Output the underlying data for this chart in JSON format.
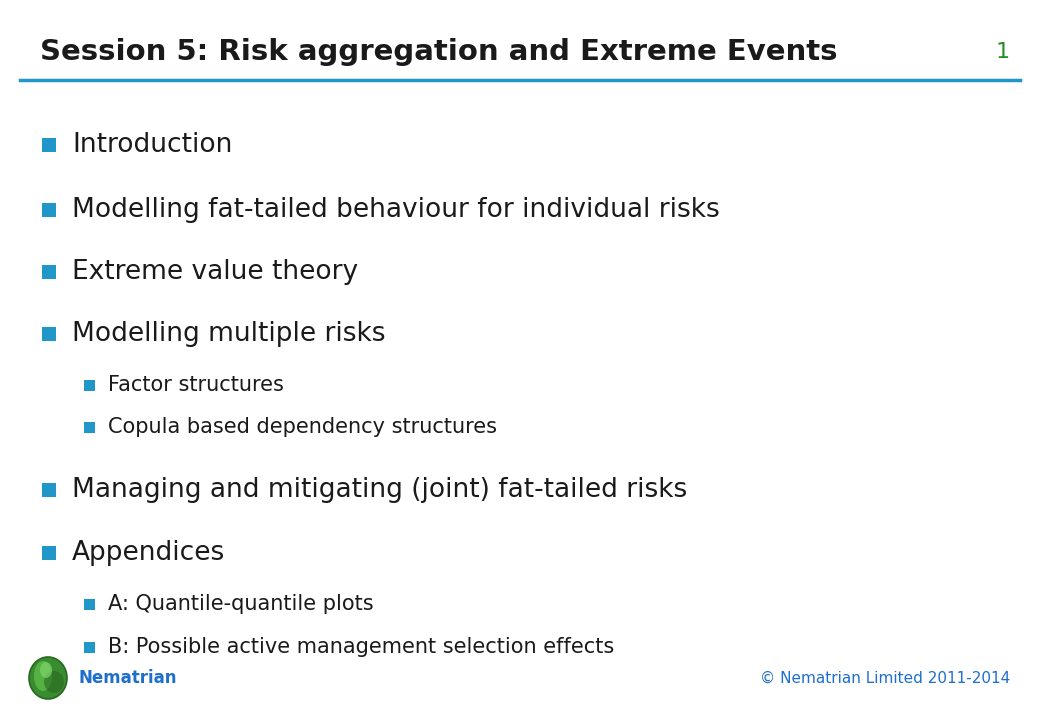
{
  "title": "Session 5: Risk aggregation and Extreme Events",
  "slide_number": "1",
  "title_color": "#1a1a1a",
  "title_line_color": "#2196c8",
  "slide_number_color": "#228B22",
  "bullet_color": "#2196c8",
  "text_color": "#1a1a1a",
  "footer_left": "Nematrian",
  "footer_right": "© Nematrian Limited 2011-2014",
  "footer_color": "#1e6fcc",
  "background_color": "#ffffff",
  "title_fontsize": 21,
  "level1_fontsize": 19,
  "level2_fontsize": 15,
  "items": [
    {
      "level": 1,
      "text": "Introduction"
    },
    {
      "level": 1,
      "text": "Modelling fat-tailed behaviour for individual risks"
    },
    {
      "level": 1,
      "text": "Extreme value theory"
    },
    {
      "level": 1,
      "text": "Modelling multiple risks"
    },
    {
      "level": 2,
      "text": "Factor structures"
    },
    {
      "level": 2,
      "text": "Copula based dependency structures"
    },
    {
      "level": 1,
      "text": "Managing and mitigating (joint) fat-tailed risks"
    },
    {
      "level": 1,
      "text": "Appendices"
    },
    {
      "level": 2,
      "text": "A: Quantile-quantile plots"
    },
    {
      "level": 2,
      "text": "B: Possible active management selection effects"
    }
  ]
}
